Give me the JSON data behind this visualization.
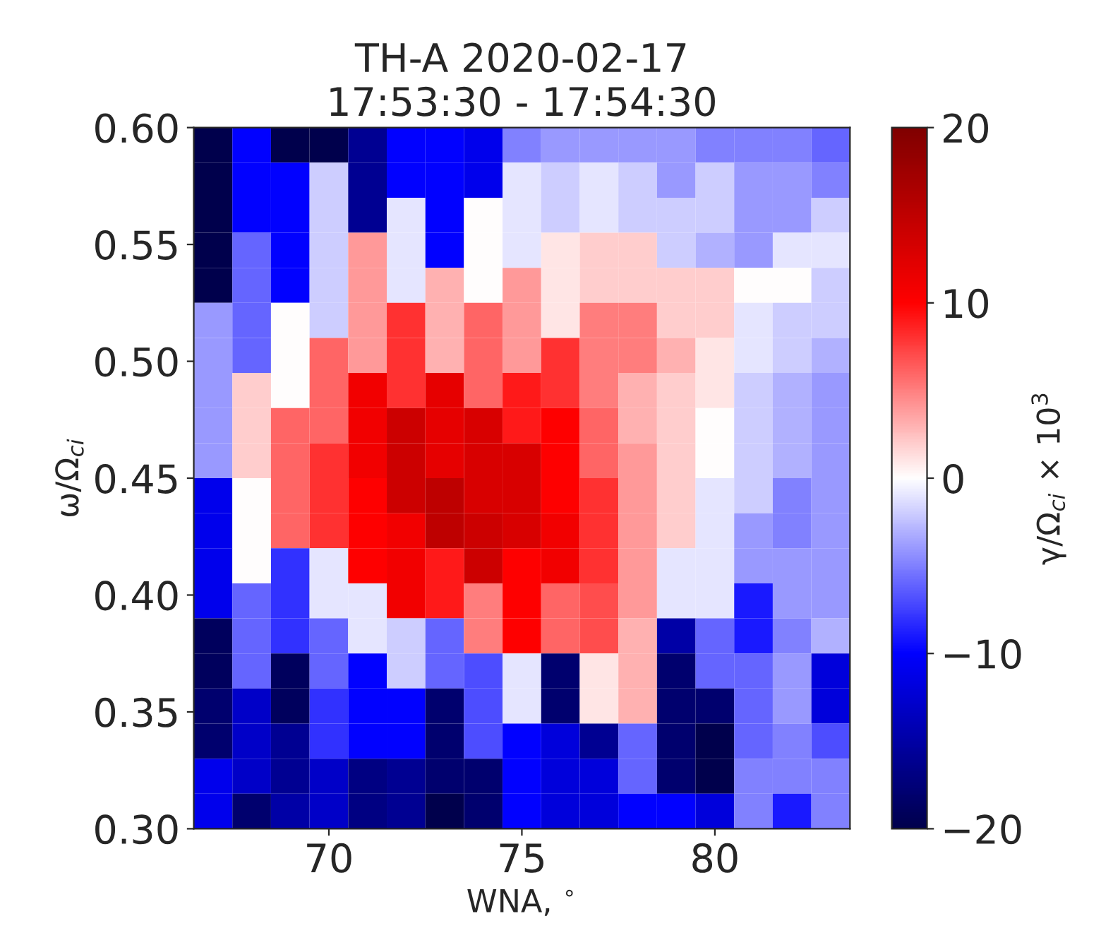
{
  "chart_data": {
    "type": "heatmap",
    "title": "TH-A 2020-02-17\n17:53:30 - 17:54:30",
    "xlabel": "WNA, $^{∘}$",
    "ylabel": "ω/Ω$_{ci}$",
    "clabel": "γ/Ω$_{ci}$ × 10$^{3}$",
    "x": [
      67,
      68,
      69,
      70,
      71,
      72,
      73,
      74,
      75,
      76,
      77,
      78,
      79,
      80,
      81,
      82,
      83
    ],
    "y": [
      0.5925,
      0.5775,
      0.5625,
      0.5475,
      0.5325,
      0.5175,
      0.5025,
      0.4875,
      0.4725,
      0.4575,
      0.4425,
      0.4275,
      0.4125,
      0.3975,
      0.3825,
      0.3675,
      0.3525,
      0.3375,
      0.3225,
      0.3075
    ],
    "xlim": [
      66.5,
      83.5
    ],
    "xticks": [
      70,
      75,
      80
    ],
    "ylim": [
      0.3,
      0.6
    ],
    "yticks": [
      {
        "value": 0.3,
        "label": "0.30"
      },
      {
        "value": 0.35,
        "label": "0.35"
      },
      {
        "value": 0.4,
        "label": "0.40"
      },
      {
        "value": 0.45,
        "label": "0.45"
      },
      {
        "value": 0.5,
        "label": "0.50"
      },
      {
        "value": 0.55,
        "label": "0.55"
      },
      {
        "value": 0.6,
        "label": "0.60"
      }
    ],
    "clim": [
      -20,
      20
    ],
    "cticks": [
      -20,
      -10,
      0,
      10,
      20
    ],
    "cells": [
      [
        -20,
        -10,
        -20,
        -20,
        -16,
        -10,
        -10,
        -11,
        -5,
        -4,
        -4,
        -4,
        -4,
        -5,
        -5,
        -5,
        -6
      ],
      [
        -20,
        -10,
        -10,
        -2,
        -16,
        -10,
        -10,
        -11,
        -1,
        -2,
        -1,
        -2,
        -4,
        -2,
        -4,
        -4,
        -5
      ],
      [
        -20,
        -10,
        -10,
        -2,
        -16,
        -1,
        -10,
        0,
        -1,
        -2,
        -1,
        -2,
        -2,
        -2,
        -4,
        -4,
        -2
      ],
      [
        -20,
        -6,
        -10,
        -2,
        4,
        -1,
        -10,
        0,
        -1,
        1,
        2,
        2,
        -2,
        -3,
        -4,
        -1,
        -1
      ],
      [
        -20,
        -6,
        -10,
        -2,
        4,
        -1,
        3,
        0,
        4,
        1,
        2,
        2,
        2,
        2,
        0,
        0,
        -2
      ],
      [
        -4,
        -6,
        0,
        -2,
        4,
        8,
        3,
        6,
        4,
        1,
        5,
        5,
        2,
        2,
        -1,
        -2,
        -2
      ],
      [
        -4,
        -6,
        0,
        6,
        4,
        8,
        3,
        6,
        4,
        8,
        5,
        5,
        3,
        1,
        -1,
        -2,
        -3
      ],
      [
        -4,
        2,
        0,
        6,
        11,
        8,
        12,
        6,
        9,
        8,
        5,
        3,
        2,
        1,
        -2,
        -3,
        -4
      ],
      [
        -4,
        2,
        6,
        6,
        11,
        14,
        12,
        13,
        9,
        10,
        6,
        3,
        2,
        0,
        -2,
        -3,
        -4
      ],
      [
        -4,
        2,
        6,
        8,
        11,
        14,
        12,
        13,
        13,
        10,
        6,
        4,
        2,
        0,
        -2,
        -3,
        -4
      ],
      [
        -11,
        0,
        6,
        8,
        10,
        14,
        15,
        13,
        13,
        10,
        8,
        4,
        2,
        -1,
        -2,
        -5,
        -4
      ],
      [
        -11,
        0,
        6,
        8,
        10,
        11,
        15,
        14,
        13,
        11,
        8,
        4,
        2,
        -1,
        -4,
        -5,
        -4
      ],
      [
        -11,
        0,
        -8,
        -1,
        10,
        11,
        9,
        14,
        10,
        11,
        8,
        4,
        -1,
        -1,
        -4,
        -4,
        -4
      ],
      [
        -11,
        -6,
        -8,
        -1,
        -1,
        11,
        9,
        5,
        10,
        6,
        7,
        4,
        -1,
        -1,
        -9,
        -4,
        -4
      ],
      [
        -19,
        -6,
        -8,
        -6,
        -1,
        -2,
        -6,
        5,
        10,
        6,
        7,
        3,
        -15,
        -6,
        -9,
        -5,
        -3
      ],
      [
        -19,
        -6,
        -19,
        -6,
        -10,
        -2,
        -6,
        -7,
        -1,
        -18,
        1,
        3,
        -18,
        -6,
        -6,
        -4,
        -12
      ],
      [
        -18,
        -13,
        -19,
        -8,
        -10,
        -10,
        -18,
        -7,
        -1,
        -18,
        1,
        3,
        -18,
        -18,
        -6,
        -4,
        -12
      ],
      [
        -18,
        -13,
        -16,
        -8,
        -10,
        -10,
        -18,
        -7,
        -10,
        -12,
        -16,
        -6,
        -18,
        -20,
        -6,
        -5,
        -7
      ],
      [
        -11,
        -13,
        -16,
        -13,
        -17,
        -16,
        -18,
        -18,
        -10,
        -12,
        -12,
        -6,
        -18,
        -20,
        -5,
        -5,
        -5
      ],
      [
        -11,
        -18,
        -15,
        -13,
        -17,
        -16,
        -20,
        -18,
        -10,
        -12,
        -12,
        -10,
        -10,
        -12,
        -5,
        -9,
        -5
      ]
    ]
  }
}
